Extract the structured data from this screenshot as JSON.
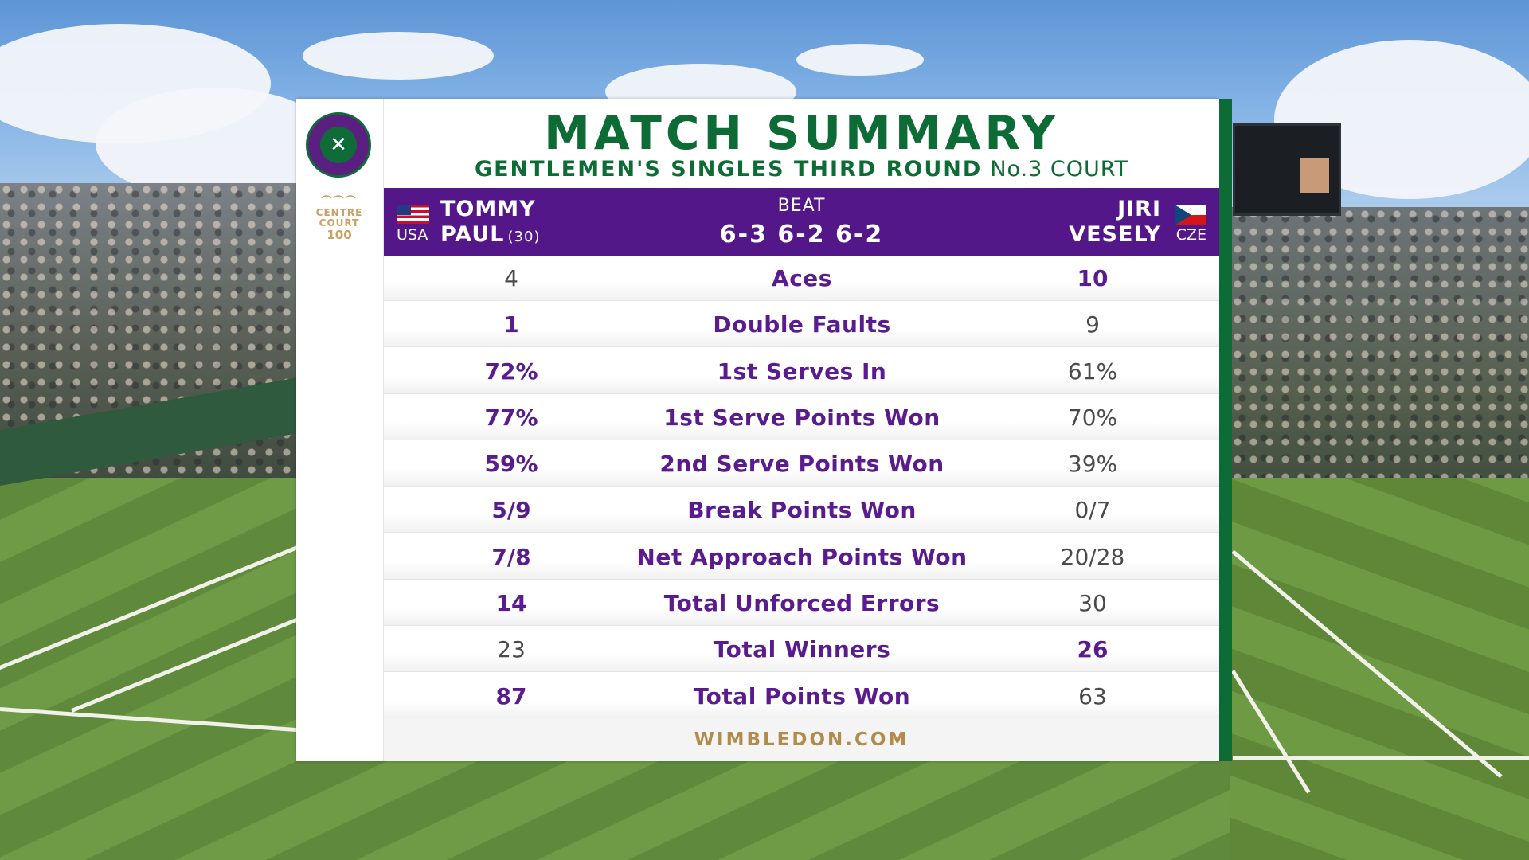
{
  "header": {
    "title": "MATCH SUMMARY",
    "round": "GENTLEMEN'S SINGLES THIRD ROUND",
    "court": "No.3 COURT"
  },
  "logos": {
    "wimbledon_crest": "wimbledon-crest-icon",
    "centre_court_line1": "CENTRE",
    "centre_court_line2": "COURT",
    "centre_court_line3": "100"
  },
  "match": {
    "result_word": "BEAT",
    "score": "6-3 6-2 6-2",
    "winner": {
      "first": "TOMMY",
      "last": "PAUL",
      "seed": "(30)",
      "country": "USA",
      "flag": "usa-flag-icon"
    },
    "loser": {
      "first": "JIRI",
      "last": "VESELY",
      "country": "CZE",
      "flag": "czech-flag-icon"
    }
  },
  "stats": [
    {
      "label": "Aces",
      "left": "4",
      "right": "10",
      "left_highlight": false,
      "right_highlight": true
    },
    {
      "label": "Double Faults",
      "left": "1",
      "right": "9",
      "left_highlight": true,
      "right_highlight": false
    },
    {
      "label": "1st Serves In",
      "left": "72%",
      "right": "61%",
      "left_highlight": true,
      "right_highlight": false
    },
    {
      "label": "1st Serve Points Won",
      "left": "77%",
      "right": "70%",
      "left_highlight": true,
      "right_highlight": false
    },
    {
      "label": "2nd Serve Points Won",
      "left": "59%",
      "right": "39%",
      "left_highlight": true,
      "right_highlight": false
    },
    {
      "label": "Break Points Won",
      "left": "5/9",
      "right": "0/7",
      "left_highlight": true,
      "right_highlight": false
    },
    {
      "label": "Net Approach Points Won",
      "left": "7/8",
      "right": "20/28",
      "left_highlight": true,
      "right_highlight": false
    },
    {
      "label": "Total Unforced Errors",
      "left": "14",
      "right": "30",
      "left_highlight": true,
      "right_highlight": false
    },
    {
      "label": "Total Winners",
      "left": "23",
      "right": "26",
      "left_highlight": false,
      "right_highlight": true
    },
    {
      "label": "Total Points Won",
      "left": "87",
      "right": "63",
      "left_highlight": true,
      "right_highlight": false
    }
  ],
  "footer": {
    "site": "WIMBLEDON.COM"
  },
  "colors": {
    "brand_green": "#0d6b35",
    "brand_purple": "#54178a",
    "gold": "#b28a4a"
  }
}
